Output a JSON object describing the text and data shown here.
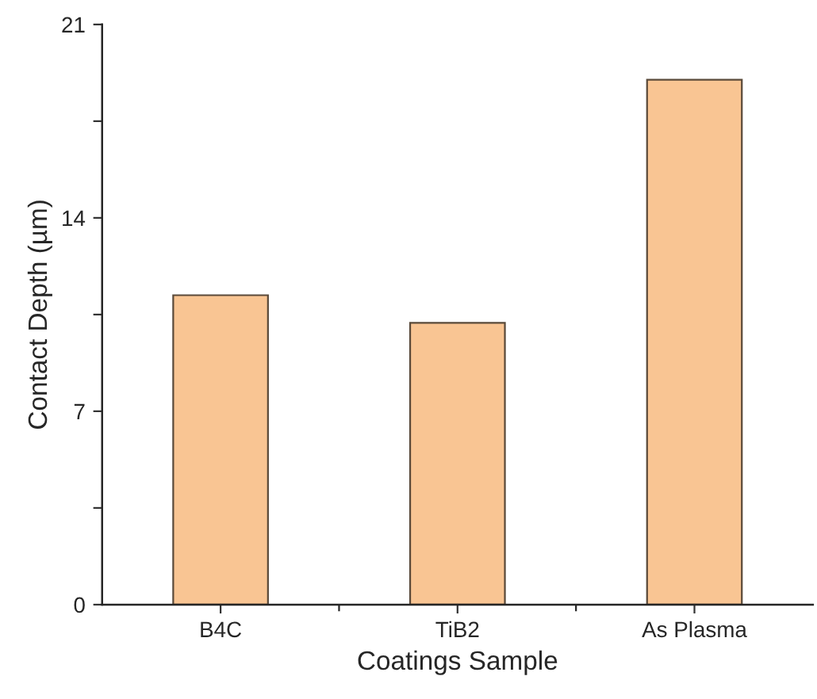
{
  "chart_data": {
    "type": "bar",
    "xlabel": "Coatings Sample",
    "ylabel": "Contact Depth (µm)",
    "categories": [
      "B4C",
      "TiB2",
      "As Plasma"
    ],
    "values": [
      11.2,
      10.2,
      19.0
    ],
    "color": "#f9c593",
    "ylim": [
      0,
      21
    ],
    "yticks": [
      0,
      {
        "value": 3.5,
        "label": null
      },
      7,
      {
        "value": 10.5,
        "label": null
      },
      14,
      {
        "value": 17.5,
        "label": null
      },
      21
    ],
    "grid": false,
    "legend": false
  }
}
